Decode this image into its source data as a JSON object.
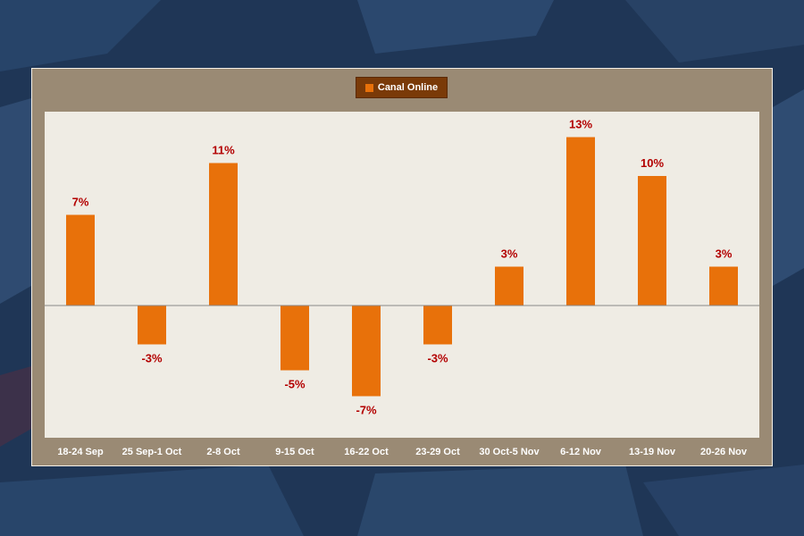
{
  "colors": {
    "background": "#1f3656",
    "panel": "#9a8a74",
    "plot_area": "#efece4",
    "bar": "#e8710a",
    "label": "#b30000",
    "legend_bg": "#7a3a08"
  },
  "chart_data": {
    "type": "bar",
    "title": "",
    "xlabel": "",
    "ylabel": "",
    "legend_position": "top-center",
    "grid": false,
    "categories": [
      "18-24 Sep",
      "25 Sep-1 Oct",
      "2-8 Oct",
      "9-15 Oct",
      "16-22 Oct",
      "23-29 Oct",
      "30 Oct-5 Nov",
      "6-12 Nov",
      "13-19 Nov",
      "20-26 Nov"
    ],
    "series": [
      {
        "name": "Canal Online",
        "values": [
          7,
          -3,
          11,
          -5,
          -7,
          -3,
          3,
          13,
          10,
          3
        ],
        "data_labels": [
          "7%",
          "-3%",
          "11%",
          "-5%",
          "-7%",
          "-3%",
          "3%",
          "13%",
          "10%",
          "3%"
        ]
      }
    ],
    "ylim": [
      -10,
      15
    ]
  }
}
